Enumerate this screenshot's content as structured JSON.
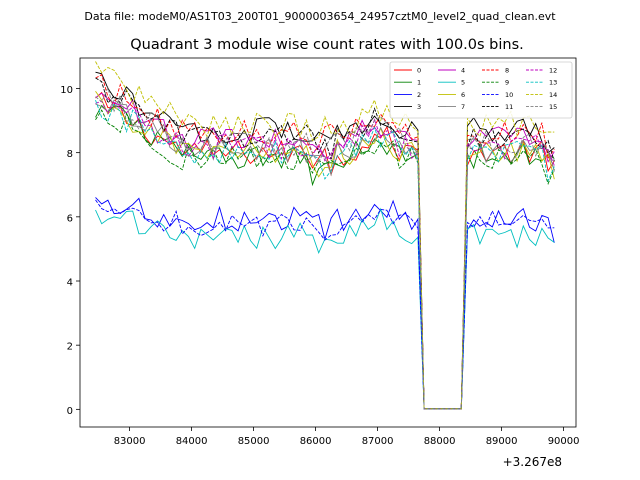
{
  "header": {
    "data_file": "Data file: modeM0/AS1T03_200T01_9000003654_24957cztM0_level2_quad_clean.evt"
  },
  "chart_data": {
    "type": "line",
    "title": "Quadrant 3 module wise count rates with 100.0s bins.",
    "xlabel": "",
    "ylabel": "",
    "x_offset_label": "+3.267e8",
    "xlim": [
      82200,
      90200
    ],
    "ylim": [
      -0.55,
      10.95
    ],
    "x_ticks": [
      83000,
      84000,
      85000,
      86000,
      87000,
      88000,
      89000,
      90000
    ],
    "x_tick_labels": [
      "83000",
      "84000",
      "85000",
      "86000",
      "87000",
      "88000",
      "89000",
      "90000"
    ],
    "y_ticks": [
      0,
      2,
      4,
      6,
      8,
      10
    ],
    "y_tick_labels": [
      "0",
      "2",
      "4",
      "6",
      "8",
      "10"
    ],
    "gap": {
      "start": 87750,
      "end": 88350
    },
    "x_start": 82450,
    "x_end": 89850,
    "bin": 100,
    "legend": {
      "placement": "top-right",
      "ncol": 4
    },
    "series": [
      {
        "name": "0",
        "color": "#ff0000",
        "dash": false,
        "level": 8.0
      },
      {
        "name": "1",
        "color": "#008000",
        "dash": false,
        "level": 7.9
      },
      {
        "name": "2",
        "color": "#0000ff",
        "dash": false,
        "level": 5.9
      },
      {
        "name": "3",
        "color": "#000000",
        "dash": false,
        "level": 8.7
      },
      {
        "name": "4",
        "color": "#bf00bf",
        "dash": false,
        "level": 8.4
      },
      {
        "name": "5",
        "color": "#00bfbf",
        "dash": false,
        "level": 5.4
      },
      {
        "name": "6",
        "color": "#bfbf00",
        "dash": false,
        "level": 8.0
      },
      {
        "name": "7",
        "color": "#808080",
        "dash": false,
        "level": 8.1
      },
      {
        "name": "8",
        "color": "#ff0000",
        "dash": true,
        "level": 8.6
      },
      {
        "name": "9",
        "color": "#008000",
        "dash": true,
        "level": 7.8
      },
      {
        "name": "10",
        "color": "#0000ff",
        "dash": true,
        "level": 5.8
      },
      {
        "name": "11",
        "color": "#000000",
        "dash": true,
        "level": 8.5
      },
      {
        "name": "12",
        "color": "#bf00bf",
        "dash": true,
        "level": 8.2
      },
      {
        "name": "13",
        "color": "#00bfbf",
        "dash": true,
        "level": 8.0
      },
      {
        "name": "14",
        "color": "#bfbf00",
        "dash": true,
        "level": 8.9
      },
      {
        "name": "15",
        "color": "#808080",
        "dash": true,
        "level": 8.3
      }
    ]
  }
}
